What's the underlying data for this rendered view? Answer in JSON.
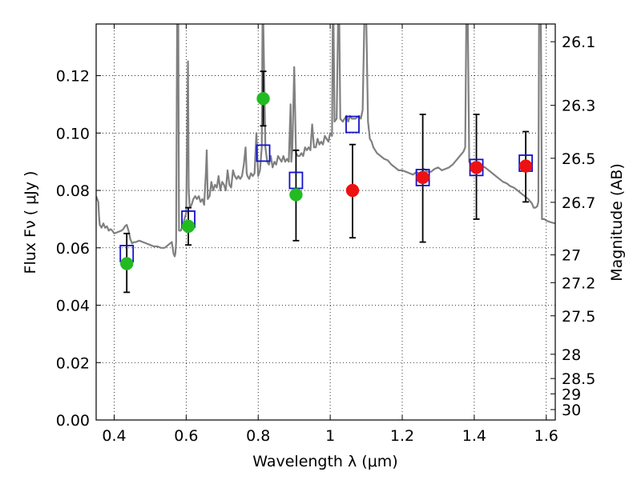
{
  "chart_data": {
    "type": "scatter",
    "title": "",
    "xlabel": "Wavelength  λ (μm)",
    "ylabel": "Flux  Fν  ( μJy )",
    "y2label": "Magnitude (AB)",
    "xlim": [
      0.35,
      1.625
    ],
    "ylim": [
      0.0,
      0.138
    ],
    "grid": true,
    "grid_style": "dotted",
    "x_ticks": [
      0.4,
      0.6,
      0.8,
      1.0,
      1.2,
      1.4,
      1.6
    ],
    "x_tick_labels": [
      "0.4",
      "0.6",
      "0.8",
      "1",
      "1.2",
      "1.4",
      "1.6"
    ],
    "y_ticks": [
      0.0,
      0.02,
      0.04,
      0.06,
      0.08,
      0.1,
      0.12
    ],
    "y_tick_labels": [
      "0.00",
      "0.02",
      "0.04",
      "0.06",
      "0.08",
      "0.10",
      "0.12"
    ],
    "y2_tick_labels": [
      "26.1",
      "26.3",
      "26.5",
      "26.7",
      "27",
      "27.2",
      "27.5",
      "28",
      "28.5",
      "29",
      "30"
    ],
    "y2_tick_values": [
      26.1,
      26.3,
      26.5,
      26.7,
      27.0,
      27.2,
      27.5,
      28.0,
      28.5,
      29.0,
      30.0
    ],
    "colors": {
      "detected": "#22bb22",
      "upper_limit": "#ee1111",
      "model_box": "#1111cc",
      "sed_line": "#808080",
      "error_bar": "#000000"
    },
    "series": [
      {
        "marker": "circle",
        "color": "#22bb22",
        "points": [
          {
            "x": 0.435,
            "y": 0.0545,
            "ylo": 0.0445,
            "yhi": 0.065
          },
          {
            "x": 0.606,
            "y": 0.0675,
            "ylo": 0.061,
            "yhi": 0.074
          },
          {
            "x": 0.814,
            "y": 0.112,
            "ylo": 0.1025,
            "yhi": 0.1215
          },
          {
            "x": 0.905,
            "y": 0.0785,
            "ylo": 0.0625,
            "yhi": 0.094
          }
        ]
      },
      {
        "marker": "circle",
        "color": "#ee1111",
        "points": [
          {
            "x": 1.062,
            "y": 0.08,
            "ylo": 0.0635,
            "yhi": 0.096
          },
          {
            "x": 1.257,
            "y": 0.0845,
            "ylo": 0.062,
            "yhi": 0.1065
          },
          {
            "x": 1.406,
            "y": 0.088,
            "ylo": 0.07,
            "yhi": 0.1065
          },
          {
            "x": 1.543,
            "y": 0.0885,
            "ylo": 0.076,
            "yhi": 0.1005
          }
        ]
      },
      {
        "marker": "open-square",
        "color": "#1111cc",
        "points": [
          {
            "x": 0.435,
            "y": 0.058
          },
          {
            "x": 0.606,
            "y": 0.07
          },
          {
            "x": 0.814,
            "y": 0.093
          },
          {
            "x": 0.905,
            "y": 0.0835
          },
          {
            "x": 1.062,
            "y": 0.103
          },
          {
            "x": 1.257,
            "y": 0.0845
          },
          {
            "x": 1.406,
            "y": 0.088
          },
          {
            "x": 1.543,
            "y": 0.0895
          }
        ]
      },
      {
        "marker": "line",
        "color": "#808080",
        "points": [
          [
            0.35,
            0.078
          ],
          [
            0.353,
            0.077
          ],
          [
            0.356,
            0.076
          ],
          [
            0.358,
            0.071
          ],
          [
            0.36,
            0.068
          ],
          [
            0.365,
            0.067
          ],
          [
            0.37,
            0.0685
          ],
          [
            0.375,
            0.067
          ],
          [
            0.38,
            0.0675
          ],
          [
            0.385,
            0.066
          ],
          [
            0.39,
            0.0665
          ],
          [
            0.395,
            0.066
          ],
          [
            0.4,
            0.065
          ],
          [
            0.41,
            0.0655
          ],
          [
            0.42,
            0.066
          ],
          [
            0.425,
            0.0665
          ],
          [
            0.43,
            0.0675
          ],
          [
            0.435,
            0.068
          ],
          [
            0.44,
            0.066
          ],
          [
            0.445,
            0.063
          ],
          [
            0.45,
            0.0615
          ],
          [
            0.455,
            0.062
          ],
          [
            0.46,
            0.062
          ],
          [
            0.47,
            0.0625
          ],
          [
            0.48,
            0.062
          ],
          [
            0.49,
            0.0615
          ],
          [
            0.5,
            0.061
          ],
          [
            0.51,
            0.0605
          ],
          [
            0.52,
            0.0605
          ],
          [
            0.53,
            0.06
          ],
          [
            0.54,
            0.06
          ],
          [
            0.55,
            0.061
          ],
          [
            0.56,
            0.062
          ],
          [
            0.565,
            0.058
          ],
          [
            0.568,
            0.057
          ],
          [
            0.57,
            0.058
          ],
          [
            0.572,
            0.062
          ],
          [
            0.575,
            0.14
          ],
          [
            0.578,
            0.14
          ],
          [
            0.58,
            0.066
          ],
          [
            0.585,
            0.066
          ],
          [
            0.59,
            0.0675
          ],
          [
            0.595,
            0.07
          ],
          [
            0.6,
            0.072
          ],
          [
            0.605,
            0.125
          ],
          [
            0.607,
            0.08
          ],
          [
            0.61,
            0.074
          ],
          [
            0.615,
            0.075
          ],
          [
            0.62,
            0.077
          ],
          [
            0.625,
            0.078
          ],
          [
            0.63,
            0.077
          ],
          [
            0.635,
            0.078
          ],
          [
            0.64,
            0.076
          ],
          [
            0.645,
            0.077
          ],
          [
            0.65,
            0.075
          ],
          [
            0.655,
            0.087
          ],
          [
            0.657,
            0.094
          ],
          [
            0.66,
            0.077
          ],
          [
            0.665,
            0.078
          ],
          [
            0.67,
            0.083
          ],
          [
            0.675,
            0.08
          ],
          [
            0.68,
            0.082
          ],
          [
            0.685,
            0.081
          ],
          [
            0.69,
            0.085
          ],
          [
            0.695,
            0.08
          ],
          [
            0.7,
            0.083
          ],
          [
            0.705,
            0.082
          ],
          [
            0.71,
            0.08
          ],
          [
            0.715,
            0.087
          ],
          [
            0.72,
            0.082
          ],
          [
            0.725,
            0.081
          ],
          [
            0.73,
            0.087
          ],
          [
            0.735,
            0.085
          ],
          [
            0.74,
            0.084
          ],
          [
            0.745,
            0.085
          ],
          [
            0.75,
            0.084
          ],
          [
            0.755,
            0.085
          ],
          [
            0.76,
            0.089
          ],
          [
            0.765,
            0.095
          ],
          [
            0.768,
            0.086
          ],
          [
            0.77,
            0.085
          ],
          [
            0.775,
            0.084
          ],
          [
            0.78,
            0.086
          ],
          [
            0.785,
            0.085
          ],
          [
            0.79,
            0.086
          ],
          [
            0.795,
            0.1
          ],
          [
            0.8,
            0.085
          ],
          [
            0.805,
            0.087
          ],
          [
            0.81,
            0.095
          ],
          [
            0.812,
            0.138
          ],
          [
            0.814,
            0.14
          ],
          [
            0.816,
            0.125
          ],
          [
            0.82,
            0.095
          ],
          [
            0.825,
            0.09
          ],
          [
            0.83,
            0.089
          ],
          [
            0.835,
            0.092
          ],
          [
            0.84,
            0.088
          ],
          [
            0.845,
            0.09
          ],
          [
            0.85,
            0.089
          ],
          [
            0.855,
            0.092
          ],
          [
            0.86,
            0.091
          ],
          [
            0.865,
            0.09
          ],
          [
            0.87,
            0.092
          ],
          [
            0.875,
            0.09
          ],
          [
            0.88,
            0.091
          ],
          [
            0.885,
            0.09
          ],
          [
            0.89,
            0.11
          ],
          [
            0.892,
            0.09
          ],
          [
            0.895,
            0.095
          ],
          [
            0.9,
            0.123
          ],
          [
            0.905,
            0.093
          ],
          [
            0.91,
            0.092
          ],
          [
            0.915,
            0.092
          ],
          [
            0.92,
            0.093
          ],
          [
            0.925,
            0.092
          ],
          [
            0.93,
            0.095
          ],
          [
            0.935,
            0.094
          ],
          [
            0.94,
            0.095
          ],
          [
            0.945,
            0.094
          ],
          [
            0.95,
            0.103
          ],
          [
            0.955,
            0.095
          ],
          [
            0.96,
            0.095
          ],
          [
            0.965,
            0.098
          ],
          [
            0.97,
            0.096
          ],
          [
            0.975,
            0.097
          ],
          [
            0.98,
            0.096
          ],
          [
            0.985,
            0.099
          ],
          [
            0.99,
            0.098
          ],
          [
            0.995,
            0.097
          ],
          [
            1.0,
            0.1
          ],
          [
            1.005,
            0.099
          ],
          [
            1.007,
            0.14
          ],
          [
            1.009,
            0.14
          ],
          [
            1.012,
            0.104
          ],
          [
            1.018,
            0.105
          ],
          [
            1.022,
            0.14
          ],
          [
            1.025,
            0.14
          ],
          [
            1.028,
            0.105
          ],
          [
            1.035,
            0.104
          ],
          [
            1.04,
            0.105
          ],
          [
            1.045,
            0.106
          ],
          [
            1.05,
            0.104
          ],
          [
            1.055,
            0.106
          ],
          [
            1.06,
            0.105
          ],
          [
            1.07,
            0.105
          ],
          [
            1.08,
            0.106
          ],
          [
            1.085,
            0.105
          ],
          [
            1.09,
            0.108
          ],
          [
            1.095,
            0.14
          ],
          [
            1.1,
            0.14
          ],
          [
            1.105,
            0.104
          ],
          [
            1.11,
            0.098
          ],
          [
            1.115,
            0.097
          ],
          [
            1.12,
            0.095
          ],
          [
            1.13,
            0.093
          ],
          [
            1.14,
            0.092
          ],
          [
            1.15,
            0.091
          ],
          [
            1.16,
            0.0905
          ],
          [
            1.17,
            0.089
          ],
          [
            1.18,
            0.088
          ],
          [
            1.19,
            0.087
          ],
          [
            1.2,
            0.087
          ],
          [
            1.21,
            0.0865
          ],
          [
            1.22,
            0.086
          ],
          [
            1.23,
            0.0855
          ],
          [
            1.24,
            0.0865
          ],
          [
            1.25,
            0.0855
          ],
          [
            1.26,
            0.0875
          ],
          [
            1.27,
            0.0865
          ],
          [
            1.28,
            0.0865
          ],
          [
            1.29,
            0.0875
          ],
          [
            1.3,
            0.088
          ],
          [
            1.31,
            0.087
          ],
          [
            1.32,
            0.0875
          ],
          [
            1.33,
            0.088
          ],
          [
            1.34,
            0.089
          ],
          [
            1.35,
            0.0905
          ],
          [
            1.36,
            0.092
          ],
          [
            1.37,
            0.0935
          ],
          [
            1.375,
            0.095
          ],
          [
            1.378,
            0.14
          ],
          [
            1.382,
            0.14
          ],
          [
            1.386,
            0.09
          ],
          [
            1.39,
            0.0895
          ],
          [
            1.4,
            0.089
          ],
          [
            1.41,
            0.0885
          ],
          [
            1.42,
            0.0885
          ],
          [
            1.43,
            0.088
          ],
          [
            1.44,
            0.087
          ],
          [
            1.45,
            0.086
          ],
          [
            1.46,
            0.085
          ],
          [
            1.47,
            0.084
          ],
          [
            1.48,
            0.083
          ],
          [
            1.49,
            0.0825
          ],
          [
            1.5,
            0.0815
          ],
          [
            1.51,
            0.081
          ],
          [
            1.52,
            0.08
          ],
          [
            1.53,
            0.079
          ],
          [
            1.54,
            0.078
          ],
          [
            1.55,
            0.077
          ],
          [
            1.56,
            0.0755
          ],
          [
            1.565,
            0.074
          ],
          [
            1.57,
            0.074
          ],
          [
            1.575,
            0.0745
          ],
          [
            1.578,
            0.076
          ],
          [
            1.58,
            0.14
          ],
          [
            1.585,
            0.14
          ],
          [
            1.588,
            0.07
          ],
          [
            1.595,
            0.07
          ],
          [
            1.6,
            0.0695
          ],
          [
            1.61,
            0.069
          ],
          [
            1.625,
            0.0685
          ]
        ]
      }
    ]
  }
}
